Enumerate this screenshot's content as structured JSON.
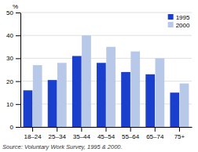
{
  "chart_data": {
    "type": "bar",
    "categories": [
      "18–24",
      "25–34",
      "35–44",
      "45–54",
      "55–64",
      "65–74",
      "75+"
    ],
    "series": [
      {
        "name": "1995",
        "color": "#1a3fcc",
        "values": [
          16,
          20.5,
          31,
          28,
          24,
          23,
          15
        ]
      },
      {
        "name": "2000",
        "color": "#b8c8e8",
        "values": [
          27,
          28,
          40,
          35,
          33,
          30,
          19
        ]
      }
    ],
    "ylabel": "%",
    "annotations": [
      "Source: Voluntary Work Survey, 1995 & 2000."
    ],
    "ylim": [
      0,
      50
    ],
    "yticks": [
      0,
      10,
      20,
      30,
      40,
      50
    ],
    "grid": true,
    "legend": "top-right"
  }
}
